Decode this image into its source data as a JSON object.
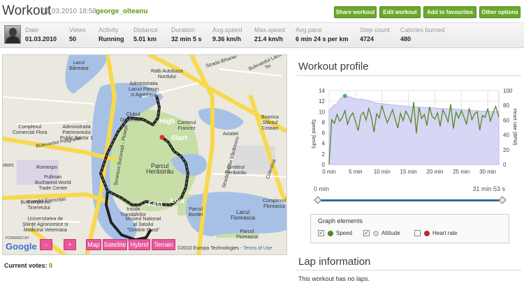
{
  "header": {
    "title": "Workout",
    "datetime": "01.03.2010 18:58",
    "username": "george_olteanu",
    "buttons": [
      "Share workout",
      "Edit workout",
      "Add to favourites",
      "Other options"
    ]
  },
  "stats": [
    {
      "label": "Date",
      "value": "01.03.2010"
    },
    {
      "label": "Views",
      "value": "50"
    },
    {
      "label": "Activity",
      "value": "Running"
    },
    {
      "label": "Distance",
      "value": "5.01 km"
    },
    {
      "label": "Duration",
      "value": "32 min 5 s"
    },
    {
      "label": "Avg.speed",
      "value": "9.36 km/h"
    },
    {
      "label": "Max.speed",
      "value": "21.4 km/h"
    },
    {
      "label": "Avg.pace",
      "value": "6 min 24 s per km"
    },
    {
      "label": "Step count",
      "value": "4724"
    },
    {
      "label": "Calories burned",
      "value": "480"
    }
  ],
  "map": {
    "labels": [
      {
        "text": "Lacul\nBăneasa"
      },
      {
        "text": "Şoseaua Bucureşti - Ploieşti"
      },
      {
        "text": "Ratb Autobaza\nNordului"
      },
      {
        "text": "Strada Bihariei"
      },
      {
        "text": "Administratia\nLacuri Parcuri\nsi Agrement"
      },
      {
        "text": "Clubul\nDiplomatilor"
      },
      {
        "text": "Cartierul\nFrancez"
      },
      {
        "text": "Complexul\nComercial Flora"
      },
      {
        "text": "Administratia\nPatrimoniului\nPublic Sector 1"
      },
      {
        "text": "Aviatiei"
      },
      {
        "text": "Biserica\nSfântul\nCristian"
      },
      {
        "text": "Bulevardul Poligrafiei"
      },
      {
        "text": "Romexpo"
      },
      {
        "text": "Pullman\nBucharest World\nTrade Center"
      },
      {
        "text": "Parcul\nHerăstrău"
      },
      {
        "text": "Cimitirul\nHerăstrău"
      },
      {
        "text": "Bulevardul Expoziţiei"
      },
      {
        "text": "Complexul\nTineretului"
      },
      {
        "text": "Insula\nTrandafirilor"
      },
      {
        "text": "Muzeul National\nal Satului\n\"Dimitrie Gusti\""
      },
      {
        "text": "Parcul\nBordei"
      },
      {
        "text": "Lacul\nFloreasca"
      },
      {
        "text": "Parcul\nFloreasca"
      },
      {
        "text": "Universitatea de\nŞtiinţe Agronomice si\nMedicina Veterinara"
      },
      {
        "text": "Complexul\nFloreasca"
      },
      {
        "text": "Colentina"
      },
      {
        "text": "Bulevardul Lacul Tei"
      },
      {
        "text": "Strada Barbu Văcărescu"
      },
      {
        "text": "otors"
      }
    ],
    "markers": [
      {
        "text": "High",
        "color": "#e8589b"
      },
      {
        "text": "Start",
        "color": "#222222"
      },
      {
        "text": "Fast",
        "color": "#e8589b"
      },
      {
        "text": "Low",
        "color": "#e8589b"
      }
    ],
    "controls": [
      "-",
      "+",
      "Map",
      "Satellite",
      "Hybrid",
      "Terrain"
    ],
    "powered_by": "POWERED BY",
    "brand": "Google",
    "copyright": "©2010 Europa Technologies - ",
    "terms": "Terms of Use"
  },
  "votes": {
    "label": "Current votes: ",
    "count": "0"
  },
  "profile": {
    "title": "Workout profile"
  },
  "chart_data": {
    "type": "line",
    "title": "Workout profile",
    "x_unit": "min",
    "xlim": [
      0,
      32.1
    ],
    "x_ticks": [
      "0 min",
      "5 min",
      "10 min",
      "15 min",
      "20 min",
      "25 min",
      "30 min"
    ],
    "ylabel": "Speed (km/h)",
    "ylim": [
      0,
      14
    ],
    "y_ticks": [
      "0",
      "2",
      "4",
      "6",
      "8",
      "10",
      "12",
      "14"
    ],
    "y2label": "Heart rate (BPM)",
    "y2lim": [
      0,
      100
    ],
    "y2_ticks": [
      "0",
      "20",
      "40",
      "60",
      "80",
      "100"
    ],
    "grid": true,
    "series": [
      {
        "name": "Altitude",
        "color": "#c9c6ef",
        "kind": "area",
        "x": [
          0,
          0.8,
          1.5,
          2.2,
          3.0,
          4.0,
          5.0,
          6.0,
          7.0,
          8.0,
          9.0,
          10.0,
          11.0,
          12.0,
          13.0,
          14.0,
          15.0,
          16.0,
          17.0,
          18.0,
          19.0,
          20.0,
          21.0,
          22.0,
          23.0,
          24.0,
          25.0,
          26.0,
          27.0,
          28.0,
          29.0,
          30.0,
          31.0,
          32.1
        ],
        "values": [
          10.2,
          11.2,
          11.5,
          12.6,
          13.0,
          12.8,
          12.4,
          12.4,
          12.2,
          11.9,
          11.6,
          11.5,
          11.4,
          11.3,
          11.2,
          11.1,
          11.0,
          10.9,
          10.9,
          10.8,
          10.8,
          10.7,
          10.6,
          10.6,
          10.5,
          10.5,
          10.4,
          10.3,
          10.2,
          10.2,
          10.1,
          10.1,
          10.0,
          10.0
        ]
      },
      {
        "name": "Speed",
        "color": "#4f8a1f",
        "kind": "line",
        "x": [
          0,
          0.5,
          1.0,
          1.5,
          2.0,
          2.5,
          3.0,
          3.5,
          4.0,
          4.5,
          5.0,
          5.5,
          6.0,
          6.5,
          7.0,
          7.5,
          8.0,
          8.5,
          9.0,
          9.5,
          10.0,
          10.5,
          11.0,
          11.5,
          12.0,
          12.5,
          13.0,
          13.5,
          14.0,
          14.5,
          15.0,
          15.5,
          16.0,
          16.5,
          17.0,
          17.5,
          18.0,
          18.5,
          19.0,
          19.5,
          20.0,
          20.5,
          21.0,
          21.5,
          22.0,
          22.5,
          23.0,
          23.5,
          24.0,
          24.5,
          25.0,
          25.5,
          26.0,
          26.5,
          27.0,
          27.5,
          28.0,
          28.5,
          29.0,
          29.5,
          30.0,
          30.5,
          31.0,
          31.5,
          32.1
        ],
        "values": [
          0,
          8.5,
          7.8,
          9.5,
          8.2,
          8.9,
          10.2,
          7.6,
          9.1,
          9.8,
          8.1,
          6.4,
          9.3,
          9.9,
          8.4,
          10.6,
          9.0,
          6.1,
          9.6,
          8.8,
          11.2,
          9.4,
          7.9,
          9.1,
          10.4,
          8.6,
          6.9,
          9.7,
          8.3,
          10.1,
          9.2,
          8.0,
          11.8,
          5.9,
          10.8,
          8.7,
          9.5,
          7.4,
          10.9,
          9.1,
          8.6,
          9.8,
          7.2,
          10.3,
          9.4,
          8.1,
          11.4,
          6.8,
          9.9,
          8.8,
          10.2,
          9.0,
          7.6,
          10.7,
          8.5,
          9.6,
          10.0,
          6.5,
          9.3,
          8.9,
          10.6,
          8.2,
          9.7,
          11.0,
          9.0
        ]
      }
    ],
    "slider": {
      "start": "0 min",
      "end": "31 min 53 s"
    },
    "legend": {
      "title": "Graph elements",
      "items": [
        {
          "name": "Speed",
          "color": "#4f8a1f",
          "checked": true
        },
        {
          "name": "Altitude",
          "color": "#c9c6ef",
          "checked": true
        },
        {
          "name": "Heart rate",
          "color": "#c0282d",
          "checked": false
        }
      ]
    }
  },
  "laps": {
    "title": "Lap information",
    "text": "This workout has no laps."
  }
}
